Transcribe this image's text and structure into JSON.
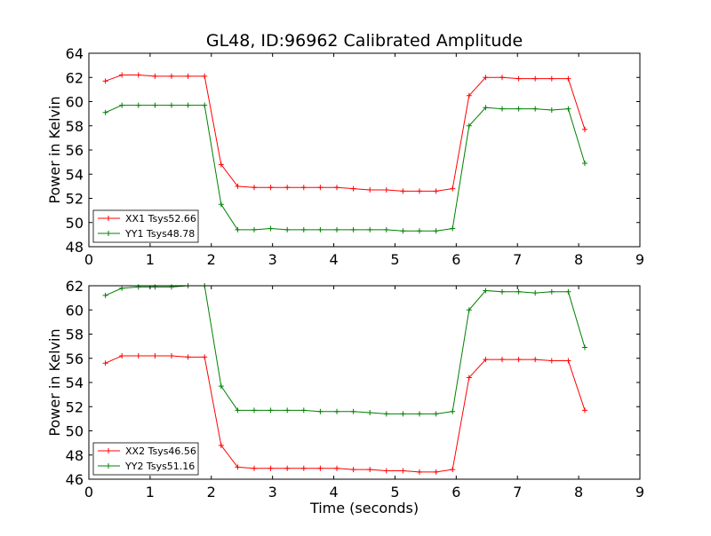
{
  "chart_data": [
    {
      "type": "line",
      "title": "GL48, ID:96962 Calibrated Amplitude",
      "xlabel": "",
      "ylabel": "Power in Kelvin",
      "xlim": [
        0,
        9
      ],
      "ylim": [
        48,
        64
      ],
      "xticks": [
        "0",
        "1",
        "2",
        "3",
        "4",
        "5",
        "6",
        "7",
        "8",
        "9"
      ],
      "yticks": [
        "48",
        "50",
        "52",
        "54",
        "56",
        "58",
        "60",
        "62",
        "64"
      ],
      "legend_position": "lower-left",
      "series": [
        {
          "name": "XX1 Tsys52.66",
          "color": "#ff0000",
          "x": [
            0.27,
            0.54,
            0.81,
            1.08,
            1.35,
            1.62,
            1.89,
            2.16,
            2.43,
            2.7,
            2.97,
            3.24,
            3.51,
            3.78,
            4.05,
            4.32,
            4.59,
            4.86,
            5.13,
            5.4,
            5.67,
            5.94,
            6.21,
            6.48,
            6.75,
            7.02,
            7.29,
            7.56,
            7.83,
            8.1
          ],
          "y": [
            61.7,
            62.2,
            62.2,
            62.1,
            62.1,
            62.1,
            62.1,
            54.8,
            53.0,
            52.9,
            52.9,
            52.9,
            52.9,
            52.9,
            52.9,
            52.8,
            52.7,
            52.7,
            52.6,
            52.6,
            52.6,
            52.8,
            60.5,
            62.0,
            62.0,
            61.9,
            61.9,
            61.9,
            61.9,
            57.7
          ]
        },
        {
          "name": "YY1 Tsys48.78",
          "color": "#008000",
          "x": [
            0.27,
            0.54,
            0.81,
            1.08,
            1.35,
            1.62,
            1.89,
            2.16,
            2.43,
            2.7,
            2.97,
            3.24,
            3.51,
            3.78,
            4.05,
            4.32,
            4.59,
            4.86,
            5.13,
            5.4,
            5.67,
            5.94,
            6.21,
            6.48,
            6.75,
            7.02,
            7.29,
            7.56,
            7.83,
            8.1
          ],
          "y": [
            59.1,
            59.7,
            59.7,
            59.7,
            59.7,
            59.7,
            59.7,
            51.5,
            49.4,
            49.4,
            49.5,
            49.4,
            49.4,
            49.4,
            49.4,
            49.4,
            49.4,
            49.4,
            49.3,
            49.3,
            49.3,
            49.5,
            58.0,
            59.5,
            59.4,
            59.4,
            59.4,
            59.3,
            59.4,
            54.9
          ]
        }
      ]
    },
    {
      "type": "line",
      "title": "",
      "xlabel": "Time (seconds)",
      "ylabel": "Power in Kelvin",
      "xlim": [
        0,
        9
      ],
      "ylim": [
        46,
        62
      ],
      "xticks": [
        "0",
        "1",
        "2",
        "3",
        "4",
        "5",
        "6",
        "7",
        "8",
        "9"
      ],
      "yticks": [
        "46",
        "48",
        "50",
        "52",
        "54",
        "56",
        "58",
        "60",
        "62"
      ],
      "legend_position": "lower-left",
      "series": [
        {
          "name": "XX2 Tsys46.56",
          "color": "#ff0000",
          "x": [
            0.27,
            0.54,
            0.81,
            1.08,
            1.35,
            1.62,
            1.89,
            2.16,
            2.43,
            2.7,
            2.97,
            3.24,
            3.51,
            3.78,
            4.05,
            4.32,
            4.59,
            4.86,
            5.13,
            5.4,
            5.67,
            5.94,
            6.21,
            6.48,
            6.75,
            7.02,
            7.29,
            7.56,
            7.83,
            8.1
          ],
          "y": [
            55.6,
            56.2,
            56.2,
            56.2,
            56.2,
            56.1,
            56.1,
            48.8,
            47.0,
            46.9,
            46.9,
            46.9,
            46.9,
            46.9,
            46.9,
            46.8,
            46.8,
            46.7,
            46.7,
            46.6,
            46.6,
            46.8,
            54.4,
            55.9,
            55.9,
            55.9,
            55.9,
            55.8,
            55.8,
            51.7
          ]
        },
        {
          "name": "YY2 Tsys51.16",
          "color": "#008000",
          "x": [
            0.27,
            0.54,
            0.81,
            1.08,
            1.35,
            1.62,
            1.89,
            2.16,
            2.43,
            2.7,
            2.97,
            3.24,
            3.51,
            3.78,
            4.05,
            4.32,
            4.59,
            4.86,
            5.13,
            5.4,
            5.67,
            5.94,
            6.21,
            6.48,
            6.75,
            7.02,
            7.29,
            7.56,
            7.83,
            8.1
          ],
          "y": [
            61.2,
            61.8,
            61.9,
            61.9,
            61.9,
            62.0,
            62.0,
            53.7,
            51.7,
            51.7,
            51.7,
            51.7,
            51.7,
            51.6,
            51.6,
            51.6,
            51.5,
            51.4,
            51.4,
            51.4,
            51.4,
            51.6,
            60.0,
            61.6,
            61.5,
            61.5,
            61.4,
            61.5,
            61.5,
            56.9
          ]
        }
      ]
    }
  ]
}
